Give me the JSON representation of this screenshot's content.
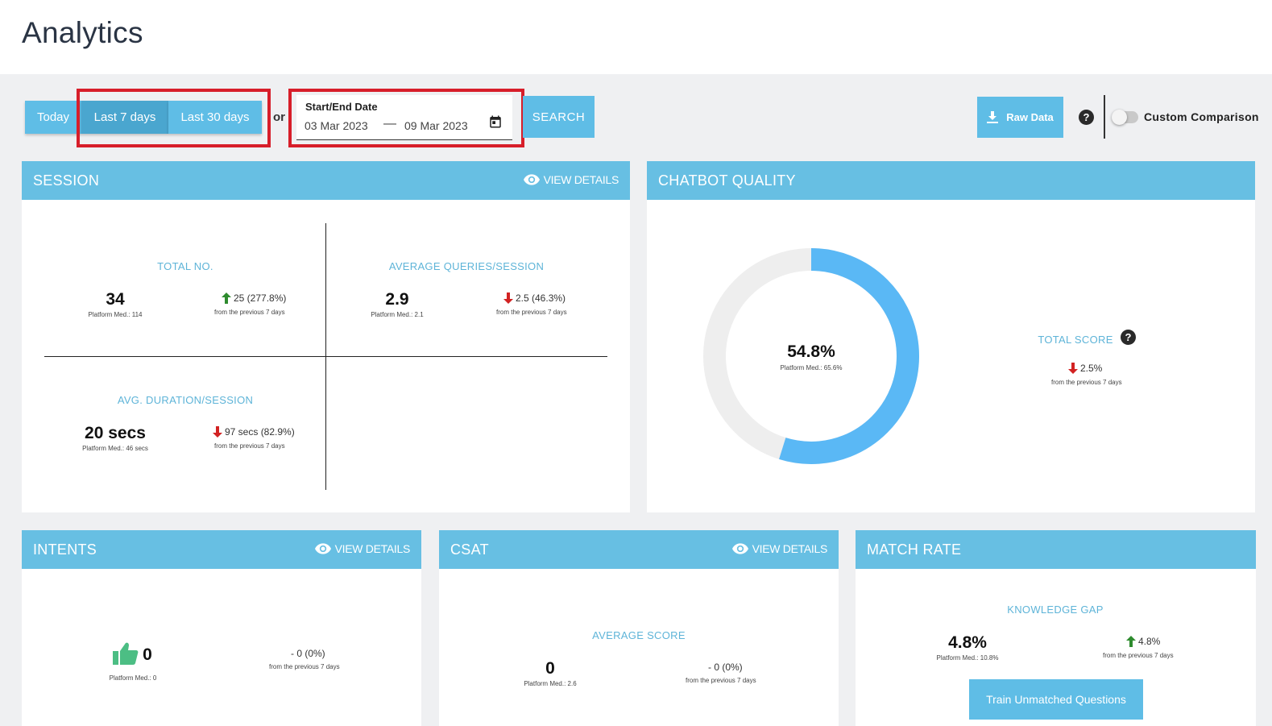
{
  "header": {
    "title": "Analytics"
  },
  "toolbar": {
    "today_label": "Today",
    "last7_label": "Last 7 days",
    "last30_label": "Last 30 days",
    "or_label": "or",
    "date_field_label": "Start/End Date",
    "start_date": "03 Mar 2023",
    "date_separator": "—",
    "end_date": "09 Mar 2023",
    "search_label": "SEARCH",
    "raw_data_label": "Raw Data",
    "help_symbol": "?",
    "custom_comparison_label": "Custom Comparison",
    "custom_comparison_on": false,
    "active_range": "Last 7 days"
  },
  "colors": {
    "accent": "#5fbde6",
    "header_bar": "#67bfe3",
    "label_blue": "#5eb4d8",
    "up": "#2e8b2e",
    "down": "#d22222",
    "highlight_red": "#d71e2a",
    "donut_fill": "#5ab8f5",
    "donut_track": "#eeeeee",
    "thumb_green": "#4cbe84"
  },
  "view_details_label": "VIEW DETAILS",
  "session": {
    "title": "SESSION",
    "total": {
      "label": "TOTAL NO.",
      "value": "34",
      "median": "Platform Med.: 114",
      "delta": "25 (277.8%)",
      "direction": "up",
      "from": "from the previous 7 days"
    },
    "avg_queries": {
      "label": "AVERAGE QUERIES/SESSION",
      "value": "2.9",
      "median": "Platform Med.: 2.1",
      "delta": "2.5 (46.3%)",
      "direction": "down",
      "from": "from the previous 7 days"
    },
    "avg_duration": {
      "label": "AVG. DURATION/SESSION",
      "value": "20 secs",
      "median": "Platform Med.: 46 secs",
      "delta": "97 secs (82.9%)",
      "direction": "down",
      "from": "from the previous 7 days"
    }
  },
  "chatbot_quality": {
    "title": "CHATBOT QUALITY",
    "score_value": "54.8%",
    "score_fraction": 0.548,
    "median": "Platform Med.: 65.6%",
    "total_score_label": "TOTAL SCORE",
    "help_symbol": "?",
    "delta": "2.5%",
    "direction": "down",
    "from": "from the previous 7 days"
  },
  "intents": {
    "title": "INTENTS",
    "value": "0",
    "icon": "thumbs-up-icon",
    "median": "Platform Med.: 0",
    "delta": "- 0 (0%)",
    "from": "from the previous 7 days"
  },
  "csat": {
    "title": "CSAT",
    "label": "AVERAGE SCORE",
    "value": "0",
    "median": "Platform Med.: 2.6",
    "delta": "- 0 (0%)",
    "from": "from the previous 7 days"
  },
  "match_rate": {
    "title": "MATCH RATE",
    "label": "KNOWLEDGE GAP",
    "value": "4.8%",
    "median": "Platform Med.: 10.8%",
    "delta": "4.8%",
    "direction": "up",
    "from": "from the previous 7 days",
    "train_label": "Train Unmatched Questions"
  }
}
